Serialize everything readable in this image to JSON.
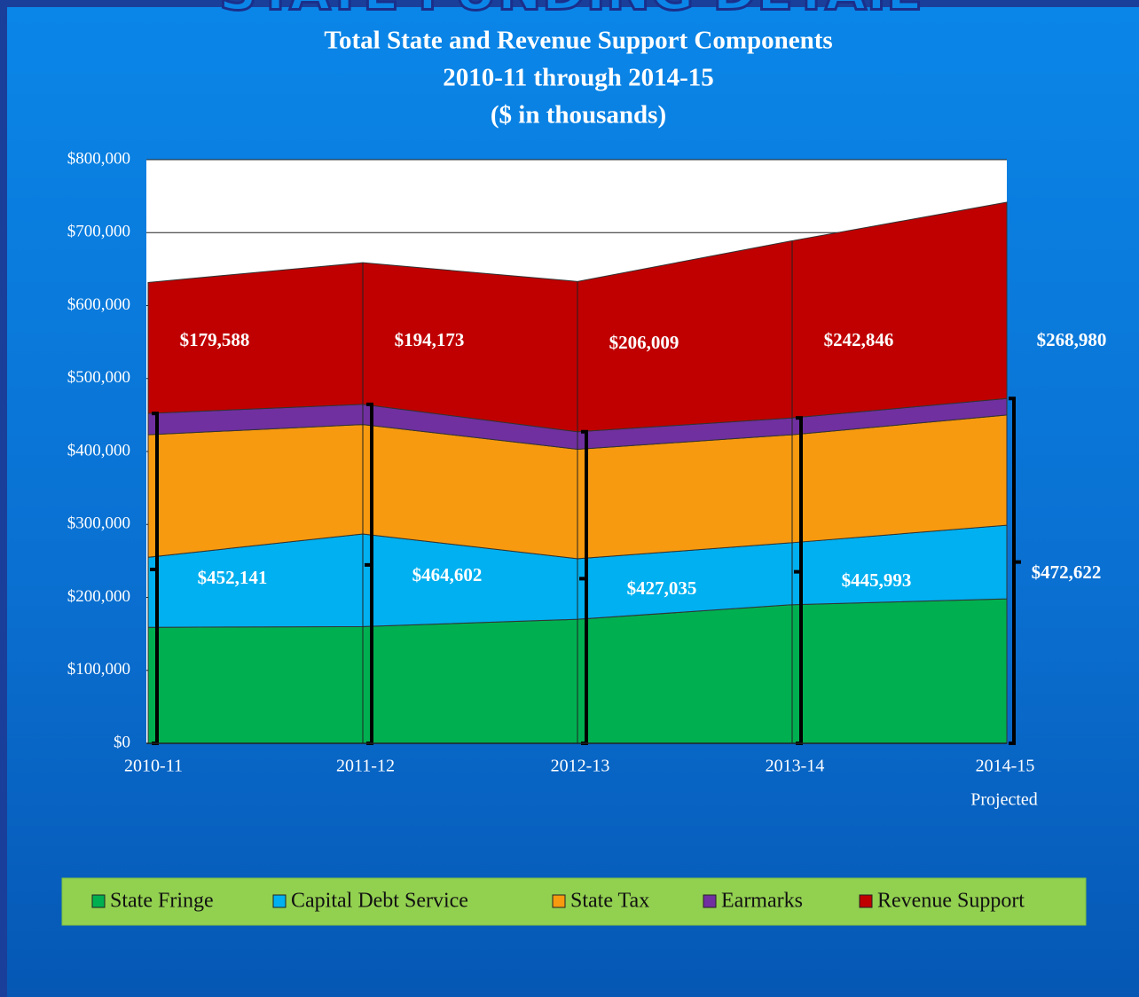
{
  "chart_data": {
    "type": "stacked_area",
    "header": "STATE FUNDING DETAIL",
    "title": "Total State and Revenue Support  Components",
    "subtitle": "2010-11 through  2014-15",
    "unit_note": "($ in thousands)",
    "categories": [
      "2010-11",
      "2011-12",
      "2012-13",
      "2013-14",
      "2014-15"
    ],
    "annotation": "Projected",
    "ylim": [
      0,
      800000
    ],
    "yticks": [
      {
        "value": 0,
        "label": "$0"
      },
      {
        "value": 100000,
        "label": "$100,000"
      },
      {
        "value": 200000,
        "label": "$200,000"
      },
      {
        "value": 300000,
        "label": "$300,000"
      },
      {
        "value": 400000,
        "label": "$400,000"
      },
      {
        "value": 500000,
        "label": "$500,000"
      },
      {
        "value": 600000,
        "label": "$600,000"
      },
      {
        "value": 700000,
        "label": "$700,000"
      },
      {
        "value": 800000,
        "label": "$800,000"
      }
    ],
    "grid": true,
    "series": [
      {
        "name": "State Fringe",
        "color": "#00b050",
        "values": [
          159000,
          160000,
          170000,
          190000,
          198000
        ]
      },
      {
        "name": "Capital Debt Service",
        "color": "#00b0f0",
        "values": [
          96000,
          127000,
          83000,
          85000,
          101000
        ]
      },
      {
        "name": "State Tax",
        "color": "#f79a0f",
        "values": [
          168000,
          150000,
          150000,
          148000,
          151000
        ]
      },
      {
        "name": "Earmarks",
        "color": "#7030a0",
        "values": [
          29141,
          27602,
          24035,
          22993,
          22622
        ]
      },
      {
        "name": "Revenue Support",
        "color": "#c00000",
        "values": [
          179588,
          194173,
          206009,
          242846,
          268980
        ],
        "value_labels": [
          "$179,588",
          "$194,173",
          "$206,009",
          "$242,846",
          "$268,980"
        ]
      }
    ],
    "state_support_totals": {
      "values": [
        452141,
        464602,
        427035,
        445993,
        472622
      ],
      "value_labels": [
        "$452,141",
        "$464,602",
        "$427,035",
        "$445,993",
        "$472,622"
      ]
    },
    "legend": "bottom"
  }
}
